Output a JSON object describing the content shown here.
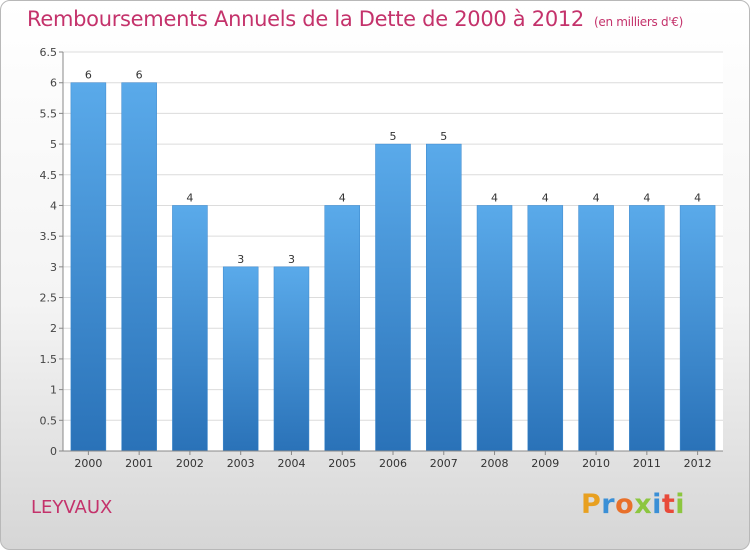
{
  "title": "Remboursements Annuels de la Dette de 2000 à 2012",
  "unit_note": "(en milliers d'€)",
  "commune": "LEYVAUX",
  "logo": {
    "letters": [
      "P",
      "r",
      "o",
      "x",
      "i",
      "t",
      "i"
    ],
    "colors": [
      "#e8a020",
      "#3a8fd6",
      "#e8702a",
      "#8cc63f",
      "#3a8fd6",
      "#e84a3a",
      "#8cc63f"
    ]
  },
  "colors": {
    "bar": "#4f9fe0",
    "bar_dark": "#2a72b8",
    "title": "#c4326b"
  },
  "chart_data": {
    "type": "bar",
    "categories": [
      "2000",
      "2001",
      "2002",
      "2003",
      "2004",
      "2005",
      "2006",
      "2007",
      "2008",
      "2009",
      "2010",
      "2011",
      "2012"
    ],
    "values": [
      6,
      6,
      4,
      3,
      3,
      4,
      5,
      5,
      4,
      4,
      4,
      4,
      4
    ],
    "ylim": [
      0,
      6.5
    ],
    "yticks": [
      "0",
      "0.5",
      "1",
      "1.5",
      "2",
      "2.5",
      "3",
      "3.5",
      "4",
      "4.5",
      "5",
      "5.5",
      "6",
      "6.5"
    ],
    "grid": true
  }
}
